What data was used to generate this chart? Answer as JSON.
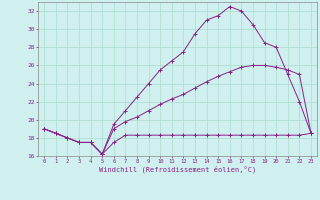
{
  "xlabel": "Windchill (Refroidissement éolien,°C)",
  "bg_color": "#cff0ee",
  "grid_color": "#aaddcc",
  "line_color": "#882288",
  "x_ticks": [
    0,
    1,
    2,
    3,
    4,
    5,
    6,
    7,
    8,
    9,
    10,
    11,
    12,
    13,
    14,
    15,
    16,
    17,
    18,
    19,
    20,
    21,
    22,
    23
  ],
  "ylim": [
    16,
    33
  ],
  "y_ticks": [
    16,
    18,
    20,
    22,
    24,
    26,
    28,
    30,
    32
  ],
  "line_flat_x": [
    0,
    1,
    2,
    3,
    4,
    5,
    6,
    7,
    8,
    9,
    10,
    11,
    12,
    13,
    14,
    15,
    16,
    17,
    18,
    19,
    20,
    21,
    22,
    23
  ],
  "line_flat_y": [
    19.0,
    18.5,
    18.0,
    17.5,
    17.5,
    16.2,
    17.5,
    18.3,
    18.3,
    18.3,
    18.3,
    18.3,
    18.3,
    18.3,
    18.3,
    18.3,
    18.3,
    18.3,
    18.3,
    18.3,
    18.3,
    18.3,
    18.3,
    18.5
  ],
  "line_mid_x": [
    0,
    1,
    2,
    3,
    4,
    5,
    6,
    7,
    8,
    9,
    10,
    11,
    12,
    13,
    14,
    15,
    16,
    17,
    18,
    19,
    20,
    21,
    22,
    23
  ],
  "line_mid_y": [
    19.0,
    18.5,
    18.0,
    17.5,
    17.5,
    16.2,
    19.0,
    19.8,
    20.3,
    21.0,
    21.7,
    22.3,
    22.8,
    23.5,
    24.2,
    24.8,
    25.3,
    25.8,
    26.0,
    26.0,
    25.8,
    25.5,
    25.0,
    18.5
  ],
  "line_top_x": [
    0,
    1,
    2,
    3,
    4,
    5,
    6,
    7,
    8,
    9,
    10,
    11,
    12,
    13,
    14,
    15,
    16,
    17,
    18,
    19,
    20,
    21,
    22,
    23
  ],
  "line_top_y": [
    19.0,
    18.5,
    18.0,
    17.5,
    17.5,
    16.2,
    19.5,
    21.0,
    22.5,
    24.0,
    25.5,
    26.5,
    27.5,
    29.5,
    31.0,
    31.5,
    32.5,
    32.0,
    30.5,
    28.5,
    28.0,
    25.0,
    22.0,
    18.5
  ]
}
